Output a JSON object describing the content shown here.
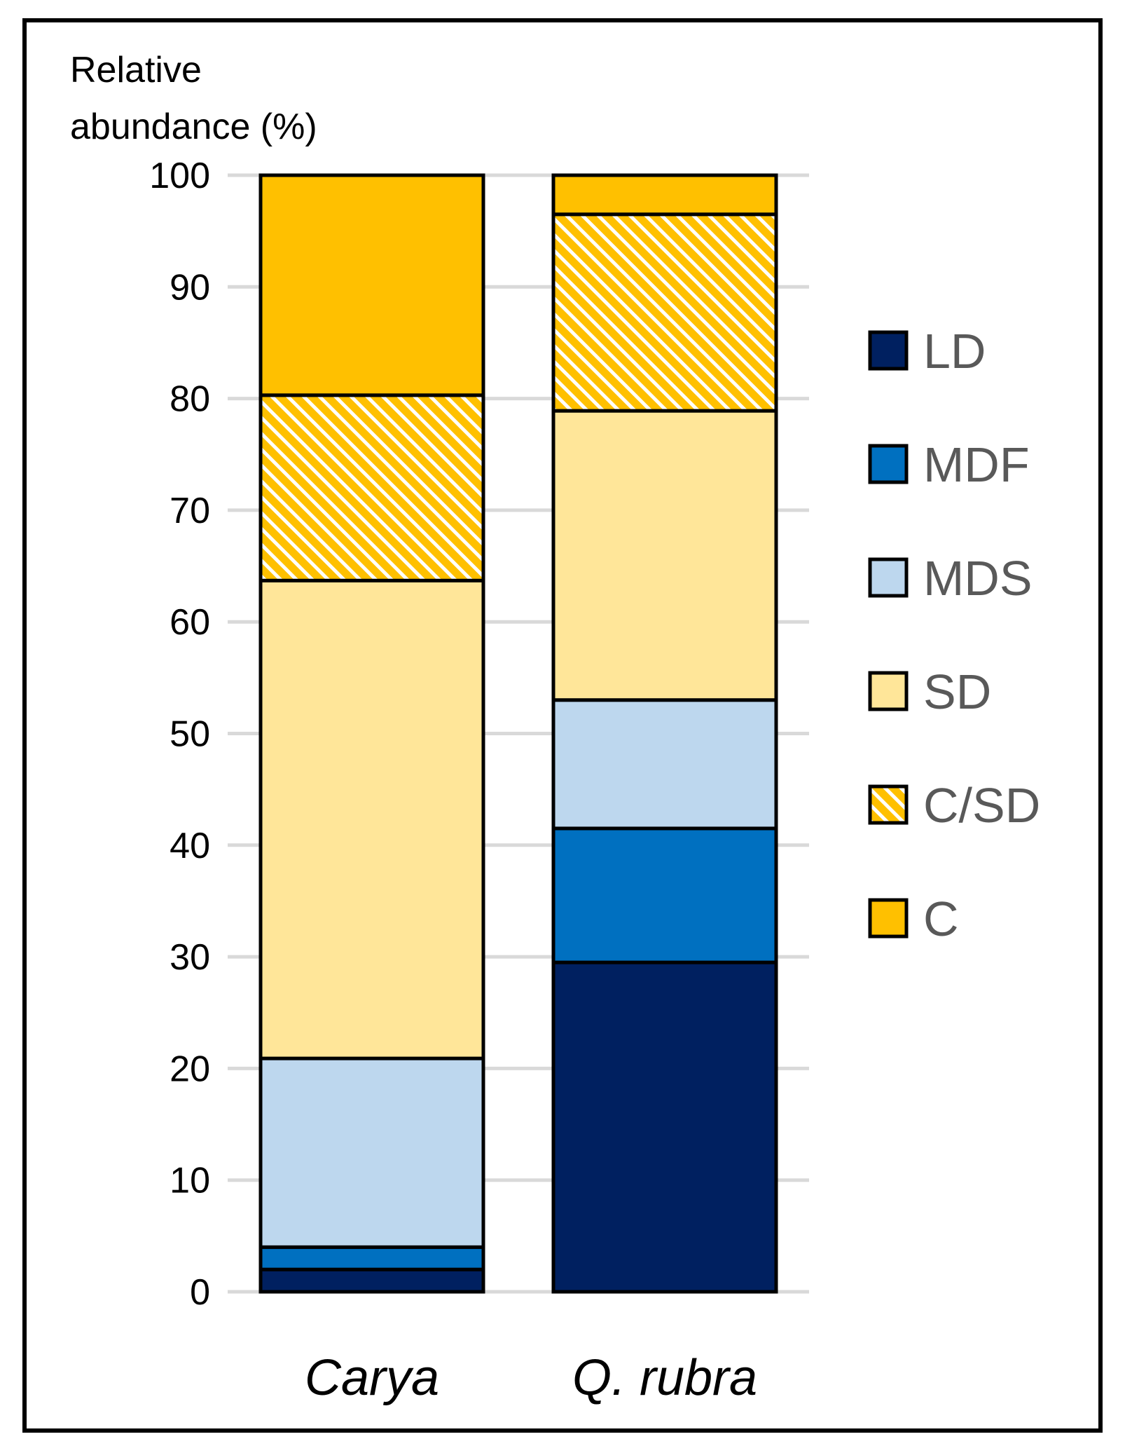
{
  "chart_data": {
    "type": "bar",
    "stacked": true,
    "ylabel_lines": [
      "Relative",
      "abundance (%)"
    ],
    "ylim": [
      0,
      100
    ],
    "yticks": [
      0,
      10,
      20,
      30,
      40,
      50,
      60,
      70,
      80,
      90,
      100
    ],
    "grid": true,
    "legend_position": "right",
    "categories": [
      "Carya",
      "Q. rubra"
    ],
    "series": [
      {
        "name": "LD",
        "color": "#002060",
        "pattern": "solid",
        "values": [
          2.0,
          29.5
        ]
      },
      {
        "name": "MDF",
        "color": "#0070C0",
        "pattern": "solid",
        "values": [
          2.0,
          12.0
        ]
      },
      {
        "name": "MDS",
        "color": "#BDD7EE",
        "pattern": "solid",
        "values": [
          16.9,
          11.5
        ]
      },
      {
        "name": "SD",
        "color": "#FFE699",
        "pattern": "solid",
        "values": [
          42.8,
          25.9
        ]
      },
      {
        "name": "C/SD",
        "color": "#FFC000",
        "pattern": "hatch",
        "values": [
          16.6,
          17.6
        ]
      },
      {
        "name": "C",
        "color": "#FFC000",
        "pattern": "solid",
        "values": [
          19.7,
          3.5
        ]
      }
    ]
  }
}
